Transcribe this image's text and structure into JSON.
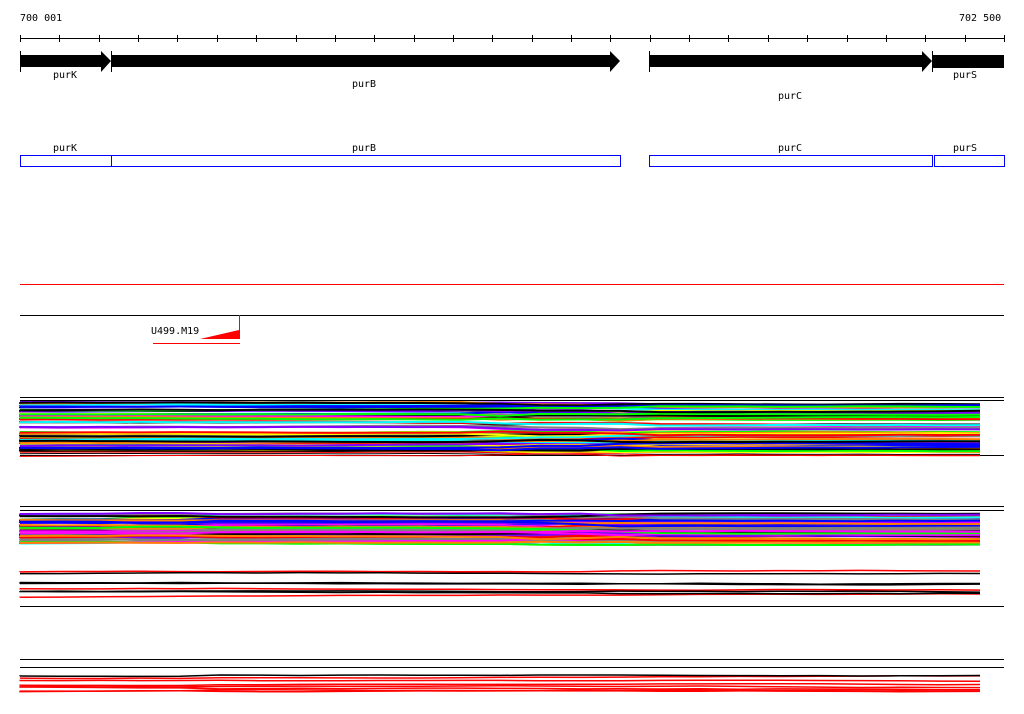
{
  "ruler": {
    "start_label": "700 001",
    "end_label": "702 500",
    "tick_count": 25
  },
  "genes": [
    {
      "name": "purK",
      "strand": "+"
    },
    {
      "name": "purB",
      "strand": "+"
    },
    {
      "name": "purC",
      "strand": "+"
    },
    {
      "name": "purS",
      "strand": "+"
    }
  ],
  "annotation_track": {
    "genes": [
      "purK",
      "purB",
      "purC",
      "purS"
    ],
    "color": "#0000ff"
  },
  "feature_track": {
    "label": "U499.M19",
    "color": "#ff0000"
  },
  "colors": {
    "palette": [
      "#ff00ff",
      "#00ff00",
      "#0000ff",
      "#ff0000",
      "#00ffff",
      "#ffff00",
      "#ff8000",
      "#808080",
      "#000000",
      "#8000ff"
    ]
  }
}
